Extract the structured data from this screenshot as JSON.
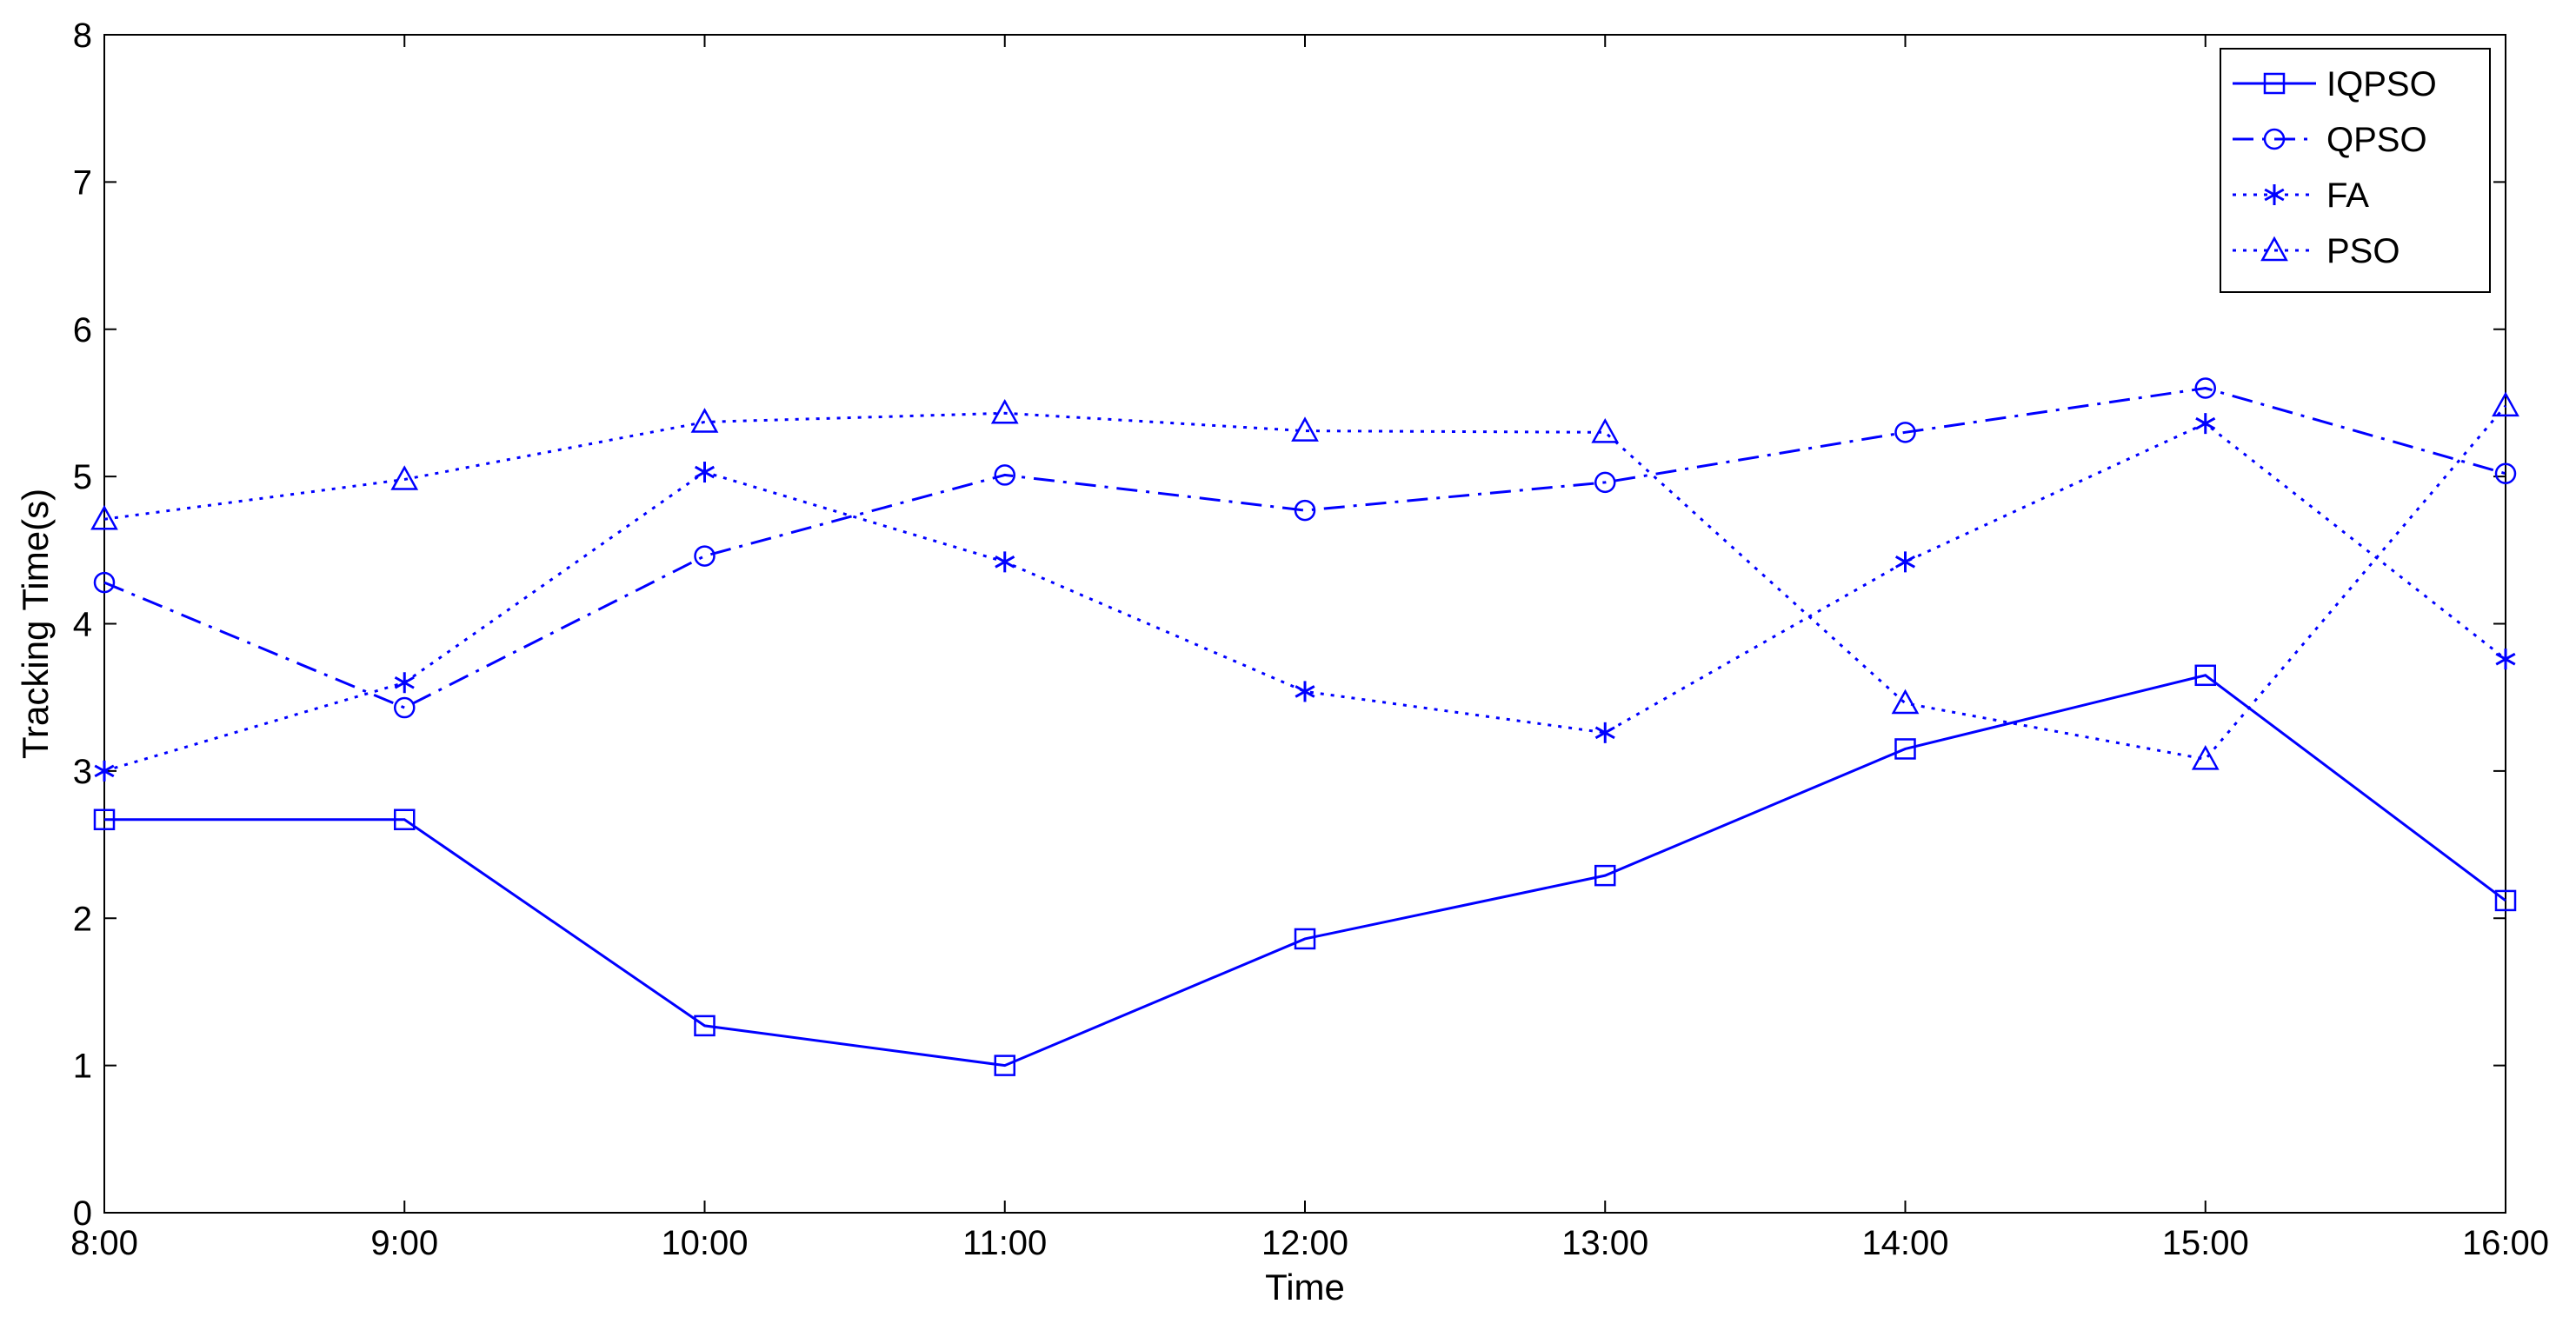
{
  "chart_data": {
    "type": "line",
    "title": "",
    "xlabel": "Time",
    "ylabel": "Tracking Time(s)",
    "categories": [
      "8:00",
      "9:00",
      "10:00",
      "11:00",
      "12:00",
      "13:00",
      "14:00",
      "15:00",
      "16:00"
    ],
    "ylim": [
      0,
      8
    ],
    "yticks": [
      0,
      1,
      2,
      3,
      4,
      5,
      6,
      7,
      8
    ],
    "grid": false,
    "legend_position": "top-right",
    "line_color": "#0000ff",
    "series": [
      {
        "name": "IQPSO",
        "marker": "square",
        "linestyle": "solid",
        "values": [
          2.67,
          2.67,
          1.27,
          1.0,
          1.86,
          2.29,
          3.15,
          3.65,
          2.12
        ]
      },
      {
        "name": "QPSO",
        "marker": "circle",
        "linestyle": "dashdot",
        "values": [
          4.28,
          3.43,
          4.46,
          5.01,
          4.77,
          4.96,
          5.3,
          5.6,
          5.02
        ]
      },
      {
        "name": "FA",
        "marker": "star",
        "linestyle": "dotted",
        "values": [
          3.0,
          3.6,
          5.03,
          4.42,
          3.54,
          3.26,
          4.42,
          5.36,
          3.76
        ]
      },
      {
        "name": "PSO",
        "marker": "triangle",
        "linestyle": "dotted",
        "values": [
          4.71,
          4.98,
          5.37,
          5.43,
          5.31,
          5.3,
          3.46,
          3.08,
          5.48
        ]
      }
    ]
  }
}
